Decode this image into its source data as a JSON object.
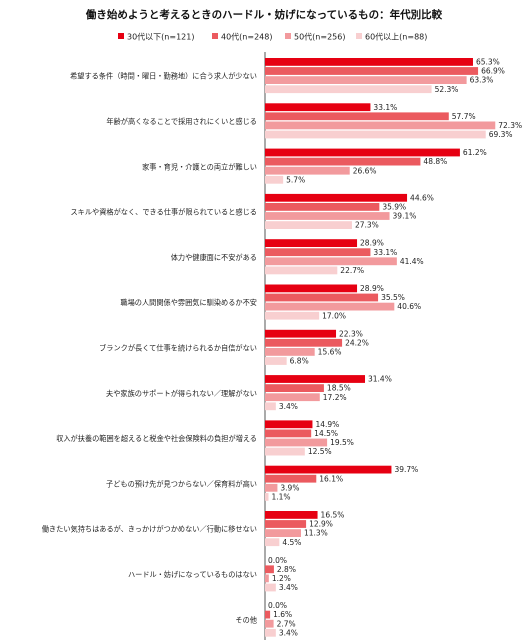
{
  "chart_data": {
    "type": "bar",
    "orientation": "horizontal",
    "title": "働き始めようと考えるときのハードル・妨げになっているもの：年代別比較",
    "legend_position": "top",
    "xlim": [
      0,
      80
    ],
    "unit": "%",
    "grid": false,
    "categories": [
      "希望する条件（時間・曜日・勤務地）に合う求人が少ない",
      "年齢が高くなることで採用されにくいと感じる",
      "家事・育児・介護との両立が難しい",
      "スキルや資格がなく、できる仕事が限られていると感じる",
      "体力や健康面に不安がある",
      "職場の人間関係や雰囲気に馴染めるか不安",
      "ブランクが長くて仕事を続けられるか自信がない",
      "夫や家族のサポートが得られない／理解がない",
      "収入が扶養の範囲を超えると税金や社会保険料の負担が増える",
      "子どもの預け先が見つからない／保育料が高い",
      "働きたい気持ちはあるが、きっかけがつかめない／行動に移せない",
      "ハードル・妨げになっているものはない",
      "その他"
    ],
    "series": [
      {
        "name": "30代以下(n=121)",
        "color": "#e60012",
        "values": [
          65.3,
          33.1,
          61.2,
          44.6,
          28.9,
          28.9,
          22.3,
          31.4,
          14.9,
          39.7,
          16.5,
          0.0,
          0.0
        ]
      },
      {
        "name": "40代(n=248)",
        "color": "#eb5a5f",
        "values": [
          66.9,
          57.7,
          48.8,
          35.9,
          33.1,
          35.5,
          24.2,
          18.5,
          14.5,
          16.1,
          12.9,
          2.8,
          1.6
        ]
      },
      {
        "name": "50代(n=256)",
        "color": "#f29a9d",
        "values": [
          63.3,
          72.3,
          26.6,
          39.1,
          41.4,
          40.6,
          15.6,
          17.2,
          19.5,
          3.9,
          11.3,
          1.2,
          2.7
        ]
      },
      {
        "name": "60代以上(n=88)",
        "color": "#f8cfd0",
        "values": [
          52.3,
          69.3,
          5.7,
          27.3,
          22.7,
          17.0,
          6.8,
          3.4,
          12.5,
          1.1,
          4.5,
          3.4,
          3.4
        ]
      }
    ]
  }
}
